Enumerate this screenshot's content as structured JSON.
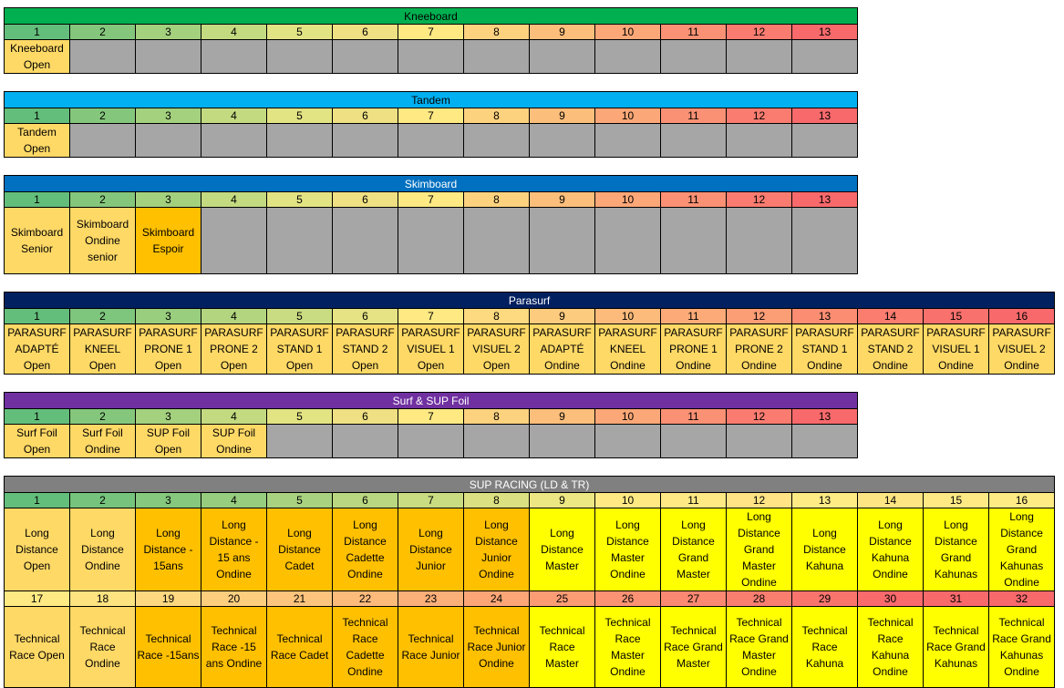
{
  "num_colors": {
    "1": "#63be7b",
    "2": "#84c77c",
    "3": "#a3d17e",
    "4": "#c3da80",
    "5": "#e2e383",
    "6": "#eee083",
    "7": "#fee983",
    "8": "#fdd27f",
    "9": "#fcbe7b",
    "10": "#fca777",
    "11": "#fb9174",
    "12": "#fa7c70",
    "13": "#f8696b"
  },
  "num_colors_16": [
    "#63be7b",
    "#7ec57d",
    "#98ce7e",
    "#b3d57f",
    "#cadc81",
    "#e5e383",
    "#fee983",
    "#fdd980",
    "#fdcb7d",
    "#fcbb7b",
    "#fcab78",
    "#fb9d75",
    "#fb8d72",
    "#fa7d70",
    "#f9716d",
    "#f8696b"
  ],
  "num_colors_sup": [
    "#63be7b",
    "#75c37c",
    "#86c87d",
    "#97cd7e",
    "#a8d27f",
    "#b9d780",
    "#cadc81",
    "#dbe182",
    "#ece683",
    "#fee983",
    "#ffe984",
    "#ffe384",
    "#ffeb84",
    "#fee583",
    "#ffe984",
    "#ffeb84"
  ],
  "num_colors_sup2": [
    "#fee983",
    "#fee381",
    "#fed880",
    "#fdce7e",
    "#fdc47d",
    "#fcba7b",
    "#fcb079",
    "#fca677",
    "#fb9c75",
    "#fb9273",
    "#fb8872",
    "#fa7e70",
    "#fa746e",
    "#f96a6c",
    "#f8696b",
    "#f8696b"
  ],
  "colors": {
    "light_yellow": "#ffd966",
    "orange": "#ffc000",
    "yellow": "#ffff00",
    "gray": "#a6a6a6"
  },
  "sections": [
    {
      "title": "Kneeboard",
      "title_bg": "#00b050",
      "title_color": "#000000",
      "columns": [
        "1",
        "2",
        "3",
        "4",
        "5",
        "6",
        "7",
        "8",
        "9",
        "10",
        "11",
        "12",
        "13"
      ],
      "cells": [
        {
          "text": "Kneeboard\nOpen",
          "color": "light_yellow"
        },
        {
          "text": "",
          "color": "gray"
        },
        {
          "text": "",
          "color": "gray"
        },
        {
          "text": "",
          "color": "gray"
        },
        {
          "text": "",
          "color": "gray"
        },
        {
          "text": "",
          "color": "gray"
        },
        {
          "text": "",
          "color": "gray"
        },
        {
          "text": "",
          "color": "gray"
        },
        {
          "text": "",
          "color": "gray"
        },
        {
          "text": "",
          "color": "gray"
        },
        {
          "text": "",
          "color": "gray"
        },
        {
          "text": "",
          "color": "gray"
        },
        {
          "text": "",
          "color": "gray"
        }
      ]
    },
    {
      "title": "Tandem",
      "title_bg": "#00b0f0",
      "title_color": "#000000",
      "columns": [
        "1",
        "2",
        "3",
        "4",
        "5",
        "6",
        "7",
        "8",
        "9",
        "10",
        "11",
        "12",
        "13"
      ],
      "cells": [
        {
          "text": "Tandem\nOpen",
          "color": "light_yellow"
        },
        {
          "text": "",
          "color": "gray"
        },
        {
          "text": "",
          "color": "gray"
        },
        {
          "text": "",
          "color": "gray"
        },
        {
          "text": "",
          "color": "gray"
        },
        {
          "text": "",
          "color": "gray"
        },
        {
          "text": "",
          "color": "gray"
        },
        {
          "text": "",
          "color": "gray"
        },
        {
          "text": "",
          "color": "gray"
        },
        {
          "text": "",
          "color": "gray"
        },
        {
          "text": "",
          "color": "gray"
        },
        {
          "text": "",
          "color": "gray"
        },
        {
          "text": "",
          "color": "gray"
        }
      ]
    },
    {
      "title": "Skimboard",
      "title_bg": "#0070c0",
      "title_color": "#ffffff",
      "columns": [
        "1",
        "2",
        "3",
        "4",
        "5",
        "6",
        "7",
        "8",
        "9",
        "10",
        "11",
        "12",
        "13"
      ],
      "cells": [
        {
          "text": "Skimboard\nSenior",
          "color": "light_yellow"
        },
        {
          "text": "Skimboard\nOndine\nsenior",
          "color": "light_yellow"
        },
        {
          "text": "Skimboard\nEspoir",
          "color": "orange"
        },
        {
          "text": "",
          "color": "gray"
        },
        {
          "text": "",
          "color": "gray"
        },
        {
          "text": "",
          "color": "gray"
        },
        {
          "text": "",
          "color": "gray"
        },
        {
          "text": "",
          "color": "gray"
        },
        {
          "text": "",
          "color": "gray"
        },
        {
          "text": "",
          "color": "gray"
        },
        {
          "text": "",
          "color": "gray"
        },
        {
          "text": "",
          "color": "gray"
        },
        {
          "text": "",
          "color": "gray"
        }
      ]
    },
    {
      "title": "Parasurf",
      "title_bg": "#002060",
      "title_color": "#ffffff",
      "columns": [
        "1",
        "2",
        "3",
        "4",
        "5",
        "6",
        "7",
        "8",
        "9",
        "10",
        "11",
        "12",
        "13",
        "14",
        "15",
        "16"
      ],
      "cells": [
        {
          "text": "PARASURF\nADAPTÉ\nOpen",
          "color": "light_yellow"
        },
        {
          "text": "PARASURF\nKNEEL Open",
          "color": "light_yellow"
        },
        {
          "text": "PARASURF\nPRONE 1\nOpen",
          "color": "light_yellow"
        },
        {
          "text": "PARASURF\nPRONE 2\nOpen",
          "color": "light_yellow"
        },
        {
          "text": "PARASURF\nSTAND 1\nOpen",
          "color": "light_yellow"
        },
        {
          "text": "PARASURF\nSTAND 2\nOpen",
          "color": "light_yellow"
        },
        {
          "text": "PARASURF\nVISUEL 1\nOpen",
          "color": "light_yellow"
        },
        {
          "text": "PARASURF\nVISUEL 2\nOpen",
          "color": "light_yellow"
        },
        {
          "text": "PARASURF\nADAPTÉ\nOndine",
          "color": "light_yellow"
        },
        {
          "text": "PARASURF\nKNEEL\nOndine",
          "color": "light_yellow"
        },
        {
          "text": "PARASURF\nPRONE 1\nOndine",
          "color": "light_yellow"
        },
        {
          "text": "PARASURF\nPRONE 2\nOndine",
          "color": "light_yellow"
        },
        {
          "text": "PARASURF\nSTAND 1\nOndine",
          "color": "light_yellow"
        },
        {
          "text": "PARASURF\nSTAND 2\nOndine",
          "color": "light_yellow"
        },
        {
          "text": "PARASURF\nVISUEL 1\nOndine",
          "color": "light_yellow"
        },
        {
          "text": "PARASURF\nVISUEL 2\nOndine",
          "color": "light_yellow"
        }
      ]
    },
    {
      "title": "Surf & SUP Foil",
      "title_bg": "#7030a0",
      "title_color": "#ffffff",
      "columns": [
        "1",
        "2",
        "3",
        "4",
        "5",
        "6",
        "7",
        "8",
        "9",
        "10",
        "11",
        "12",
        "13"
      ],
      "cells": [
        {
          "text": "Surf Foil\nOpen",
          "color": "light_yellow"
        },
        {
          "text": "Surf Foil\nOndine",
          "color": "light_yellow"
        },
        {
          "text": "SUP Foil\nOpen",
          "color": "light_yellow"
        },
        {
          "text": "SUP Foil\nOndine",
          "color": "light_yellow"
        },
        {
          "text": "",
          "color": "gray"
        },
        {
          "text": "",
          "color": "gray"
        },
        {
          "text": "",
          "color": "gray"
        },
        {
          "text": "",
          "color": "gray"
        },
        {
          "text": "",
          "color": "gray"
        },
        {
          "text": "",
          "color": "gray"
        },
        {
          "text": "",
          "color": "gray"
        },
        {
          "text": "",
          "color": "gray"
        },
        {
          "text": "",
          "color": "gray"
        }
      ]
    },
    {
      "title": "SUP RACING (LD & TR)",
      "title_bg": "#808080",
      "title_color": "#ffffff",
      "columns": [
        "1",
        "2",
        "3",
        "4",
        "5",
        "6",
        "7",
        "8",
        "9",
        "10",
        "11",
        "12",
        "13",
        "14",
        "15",
        "16"
      ],
      "cells": [
        {
          "text": "Long\nDistance\nOpen",
          "color": "light_yellow"
        },
        {
          "text": "Long\nDistance\nOndine",
          "color": "light_yellow"
        },
        {
          "text": "Long\nDistance -\n15ans",
          "color": "orange"
        },
        {
          "text": "Long\nDistance -\n15 ans\nOndine",
          "color": "orange"
        },
        {
          "text": "Long\nDistance\nCadet",
          "color": "orange"
        },
        {
          "text": "Long\nDistance\nCadette\nOndine",
          "color": "orange"
        },
        {
          "text": "Long\nDistance\nJunior",
          "color": "orange"
        },
        {
          "text": "Long\nDistance\nJunior\nOndine",
          "color": "orange"
        },
        {
          "text": "Long\nDistance\nMaster",
          "color": "yellow"
        },
        {
          "text": "Long\nDistance\nMaster\nOndine",
          "color": "yellow"
        },
        {
          "text": "Long\nDistance\nGrand\nMaster",
          "color": "yellow"
        },
        {
          "text": "Long\nDistance\nGrand\nMaster\nOndine",
          "color": "yellow"
        },
        {
          "text": "Long\nDistance\nKahuna",
          "color": "yellow"
        },
        {
          "text": "Long\nDistance\nKahuna\nOndine",
          "color": "yellow"
        },
        {
          "text": "Long\nDistance\nGrand\nKahunas",
          "color": "yellow"
        },
        {
          "text": "Long\nDistance\nGrand\nKahunas\nOndine",
          "color": "yellow"
        }
      ],
      "columns2": [
        "17",
        "18",
        "19",
        "20",
        "21",
        "22",
        "23",
        "24",
        "25",
        "26",
        "27",
        "28",
        "29",
        "30",
        "31",
        "32"
      ],
      "cells2": [
        {
          "text": "Technical\nRace Open",
          "color": "light_yellow"
        },
        {
          "text": "Technical\nRace\nOndine",
          "color": "light_yellow"
        },
        {
          "text": "Technical\nRace -15ans",
          "color": "orange"
        },
        {
          "text": "Technical\nRace -15\nans Ondine",
          "color": "orange"
        },
        {
          "text": "Technical\nRace Cadet",
          "color": "orange"
        },
        {
          "text": "Technical\nRace\nCadette\nOndine",
          "color": "orange"
        },
        {
          "text": "Technical\nRace Junior",
          "color": "orange"
        },
        {
          "text": "Technical\nRace Junior\nOndine",
          "color": "orange"
        },
        {
          "text": "Technical\nRace\nMaster",
          "color": "yellow"
        },
        {
          "text": "Technical\nRace\nMaster\nOndine",
          "color": "yellow"
        },
        {
          "text": "Technical\nRace Grand\nMaster",
          "color": "yellow"
        },
        {
          "text": "Technical\nRace Grand\nMaster\nOndine",
          "color": "yellow"
        },
        {
          "text": "Technical\nRace\nKahuna",
          "color": "yellow"
        },
        {
          "text": "Technical\nRace\nKahuna\nOndine",
          "color": "yellow"
        },
        {
          "text": "Technical\nRace Grand\nKahunas",
          "color": "yellow"
        },
        {
          "text": "Technical\nRace Grand\nKahunas\nOndine",
          "color": "yellow"
        }
      ]
    }
  ]
}
